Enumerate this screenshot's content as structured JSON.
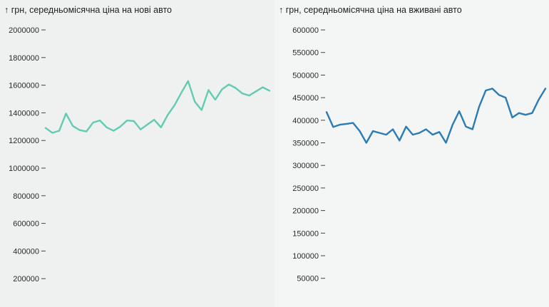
{
  "chart_data": [
    {
      "type": "line",
      "title": "↑ грн, середньомісячна ціна на нові авто",
      "color": "#63cbb2",
      "ylim": [
        200000,
        2000000
      ],
      "y_ticks": [
        2000000,
        1800000,
        1600000,
        1400000,
        1200000,
        1000000,
        800000,
        600000,
        400000,
        200000
      ],
      "values": [
        1290000,
        1255000,
        1270000,
        1395000,
        1305000,
        1275000,
        1265000,
        1330000,
        1345000,
        1295000,
        1270000,
        1300000,
        1345000,
        1340000,
        1280000,
        1315000,
        1350000,
        1295000,
        1385000,
        1455000,
        1545000,
        1630000,
        1480000,
        1420000,
        1565000,
        1495000,
        1570000,
        1605000,
        1580000,
        1540000,
        1525000,
        1555000,
        1585000,
        1560000
      ],
      "grid": false,
      "legend": "none"
    },
    {
      "type": "line",
      "title": "↑ грн, середньомісячна ціна на вживані авто",
      "color": "#2b7bb4",
      "ylim": [
        50000,
        600000
      ],
      "y_ticks": [
        600000,
        550000,
        500000,
        450000,
        400000,
        350000,
        300000,
        250000,
        200000,
        150000,
        100000,
        50000
      ],
      "values": [
        418000,
        385000,
        390000,
        392000,
        394000,
        376000,
        350000,
        376000,
        372000,
        368000,
        380000,
        355000,
        386000,
        368000,
        372000,
        380000,
        368000,
        374000,
        350000,
        390000,
        420000,
        386000,
        380000,
        430000,
        466000,
        470000,
        456000,
        450000,
        406000,
        416000,
        412000,
        416000,
        446000,
        470000
      ],
      "grid": false,
      "legend": "none"
    }
  ]
}
